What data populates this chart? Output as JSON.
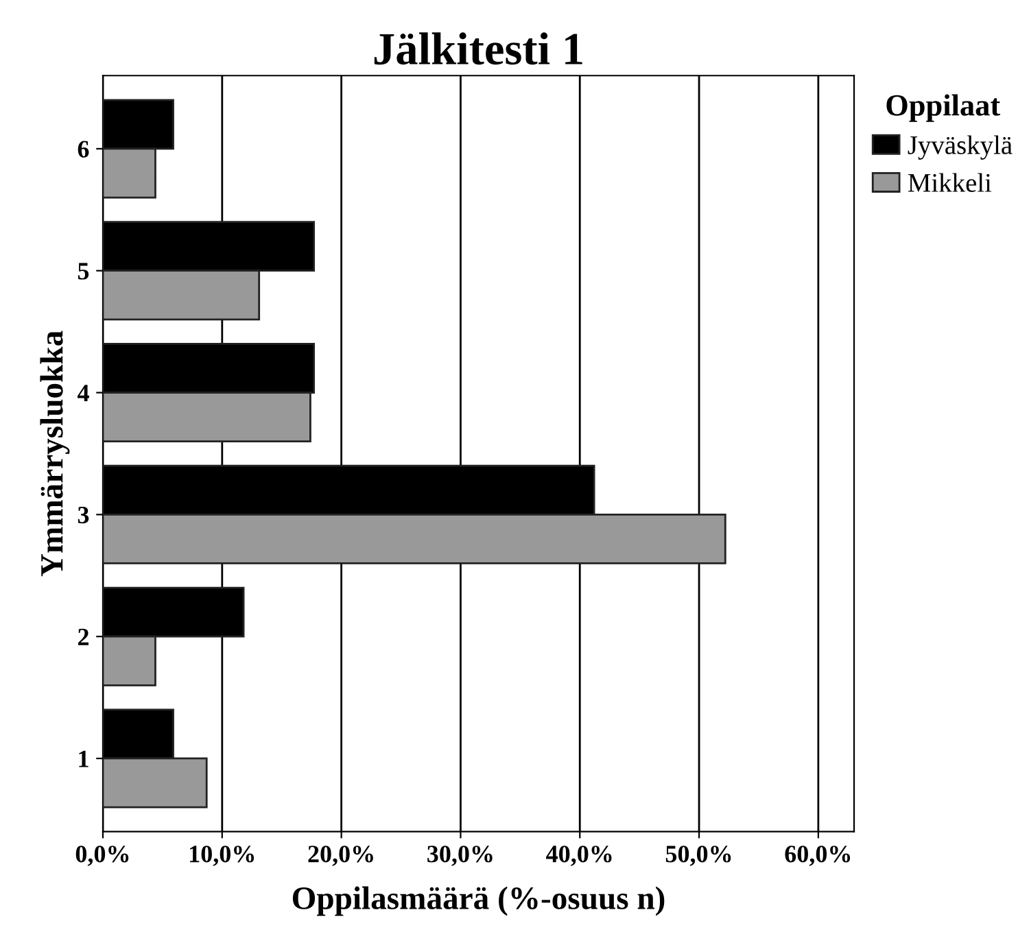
{
  "chart_data": {
    "type": "bar",
    "orientation": "horizontal",
    "title": "Jälkitesti 1",
    "xlabel": "Oppilasmäärä (%-osuus n)",
    "ylabel": "Ymmärrysluokka",
    "legend_title": "Oppilaat",
    "legend": "top right",
    "categories": [
      "6",
      "5",
      "4",
      "3",
      "2",
      "1"
    ],
    "series": [
      {
        "name": "Jyväskylä",
        "color": "#000000",
        "values": [
          5.9,
          17.7,
          17.7,
          41.2,
          11.8,
          5.9
        ]
      },
      {
        "name": "Mikkeli",
        "color": "#999999",
        "values": [
          4.4,
          13.1,
          17.4,
          52.2,
          4.4,
          8.7
        ]
      }
    ],
    "xlim": [
      0,
      63
    ],
    "xticks": [
      {
        "value": 0,
        "label": "0,0%"
      },
      {
        "value": 10,
        "label": "10,0%"
      },
      {
        "value": 20,
        "label": "20,0%"
      },
      {
        "value": 30,
        "label": "30,0%"
      },
      {
        "value": 40,
        "label": "40,0%"
      },
      {
        "value": 50,
        "label": "50,0%"
      },
      {
        "value": 60,
        "label": "60,0%"
      }
    ],
    "grid": "x"
  }
}
